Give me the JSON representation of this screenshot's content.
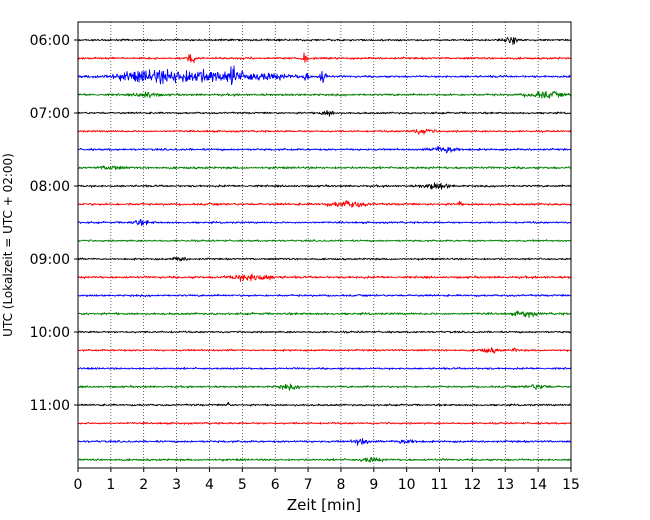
{
  "chart_data": {
    "type": "line",
    "title": "",
    "xlabel": "Zeit  [min]",
    "ylabel": "UTC (Lokalzeit = UTC + 02:00)",
    "xlim": [
      0,
      15
    ],
    "x_ticks": [
      0,
      1,
      2,
      3,
      4,
      5,
      6,
      7,
      8,
      9,
      10,
      11,
      12,
      13,
      14,
      15
    ],
    "x_tick_labels": [
      "0",
      "1",
      "2",
      "3",
      "4",
      "5",
      "6",
      "7",
      "8",
      "9",
      "10",
      "11",
      "12",
      "13",
      "14",
      "15"
    ],
    "y_ticks": [
      "06:00",
      "07:00",
      "08:00",
      "09:00",
      "10:00",
      "11:00"
    ],
    "grid": "vertical-dotted",
    "trace_interval_minutes": 15,
    "start_time": "06:00",
    "colors": [
      "#000000",
      "#ff0000",
      "#0000ff",
      "#008000"
    ],
    "traces": [
      {
        "time": "06:00",
        "color": "#000000",
        "noise": 0.25,
        "events": [
          {
            "x": 13.2,
            "amp": 0.8,
            "dur": 0.3
          }
        ]
      },
      {
        "time": "06:15",
        "color": "#ff0000",
        "noise": 0.28,
        "events": [
          {
            "x": 3.45,
            "amp": 1.8,
            "dur": 0.1
          },
          {
            "x": 6.9,
            "amp": 1.3,
            "dur": 0.1
          }
        ]
      },
      {
        "time": "06:30",
        "color": "#0000ff",
        "noise": 0.28,
        "events": [
          {
            "x": 2.3,
            "amp": 1.6,
            "dur": 1.2
          },
          {
            "x": 3.9,
            "amp": 1.4,
            "dur": 1.0
          },
          {
            "x": 4.75,
            "amp": 3.0,
            "dur": 0.08
          },
          {
            "x": 5.5,
            "amp": 0.9,
            "dur": 1.0
          },
          {
            "x": 6.9,
            "amp": 1.3,
            "dur": 0.1
          },
          {
            "x": 7.45,
            "amp": 2.0,
            "dur": 0.1
          }
        ]
      },
      {
        "time": "06:45",
        "color": "#008000",
        "noise": 0.3,
        "events": [
          {
            "x": 2.1,
            "amp": 0.8,
            "dur": 0.3
          },
          {
            "x": 14.2,
            "amp": 0.9,
            "dur": 0.5
          }
        ]
      },
      {
        "time": "07:00",
        "color": "#000000",
        "noise": 0.25,
        "events": [
          {
            "x": 7.6,
            "amp": 0.8,
            "dur": 0.2
          }
        ]
      },
      {
        "time": "07:15",
        "color": "#ff0000",
        "noise": 0.25,
        "events": [
          {
            "x": 10.5,
            "amp": 0.7,
            "dur": 0.3
          }
        ]
      },
      {
        "time": "07:30",
        "color": "#0000ff",
        "noise": 0.27,
        "events": [
          {
            "x": 11.2,
            "amp": 1.0,
            "dur": 0.4
          }
        ]
      },
      {
        "time": "07:45",
        "color": "#008000",
        "noise": 0.3,
        "events": [
          {
            "x": 1.0,
            "amp": 0.6,
            "dur": 0.3
          }
        ]
      },
      {
        "time": "08:00",
        "color": "#000000",
        "noise": 0.27,
        "events": [
          {
            "x": 10.9,
            "amp": 0.8,
            "dur": 0.4
          }
        ]
      },
      {
        "time": "08:15",
        "color": "#ff0000",
        "noise": 0.3,
        "events": [
          {
            "x": 8.2,
            "amp": 0.8,
            "dur": 0.5
          },
          {
            "x": 11.6,
            "amp": 0.9,
            "dur": 0.05
          }
        ]
      },
      {
        "time": "08:30",
        "color": "#0000ff",
        "noise": 0.25,
        "events": [
          {
            "x": 1.9,
            "amp": 0.6,
            "dur": 0.3
          }
        ]
      },
      {
        "time": "08:45",
        "color": "#008000",
        "noise": 0.25,
        "events": []
      },
      {
        "time": "09:00",
        "color": "#000000",
        "noise": 0.25,
        "events": [
          {
            "x": 3.1,
            "amp": 0.6,
            "dur": 0.2
          }
        ]
      },
      {
        "time": "09:15",
        "color": "#ff0000",
        "noise": 0.3,
        "events": [
          {
            "x": 5.3,
            "amp": 0.9,
            "dur": 0.6
          }
        ]
      },
      {
        "time": "09:30",
        "color": "#0000ff",
        "noise": 0.27,
        "events": []
      },
      {
        "time": "09:45",
        "color": "#008000",
        "noise": 0.3,
        "events": [
          {
            "x": 13.6,
            "amp": 0.8,
            "dur": 0.3
          }
        ]
      },
      {
        "time": "10:00",
        "color": "#000000",
        "noise": 0.25,
        "events": []
      },
      {
        "time": "10:15",
        "color": "#ff0000",
        "noise": 0.25,
        "events": [
          {
            "x": 12.5,
            "amp": 0.6,
            "dur": 0.3
          },
          {
            "x": 13.3,
            "amp": 1.1,
            "dur": 0.05
          }
        ]
      },
      {
        "time": "10:30",
        "color": "#0000ff",
        "noise": 0.25,
        "events": []
      },
      {
        "time": "10:45",
        "color": "#008000",
        "noise": 0.27,
        "events": [
          {
            "x": 6.4,
            "amp": 0.6,
            "dur": 0.3
          },
          {
            "x": 14.0,
            "amp": 0.6,
            "dur": 0.3
          }
        ]
      },
      {
        "time": "11:00",
        "color": "#000000",
        "noise": 0.25,
        "events": [
          {
            "x": 4.55,
            "amp": 1.5,
            "dur": 0.05
          }
        ]
      },
      {
        "time": "11:15",
        "color": "#ff0000",
        "noise": 0.25,
        "events": []
      },
      {
        "time": "11:30",
        "color": "#0000ff",
        "noise": 0.28,
        "events": [
          {
            "x": 8.6,
            "amp": 0.9,
            "dur": 0.2
          },
          {
            "x": 10.0,
            "amp": 0.7,
            "dur": 0.3
          }
        ]
      },
      {
        "time": "11:45",
        "color": "#008000",
        "noise": 0.28,
        "events": [
          {
            "x": 8.9,
            "amp": 0.6,
            "dur": 0.3
          }
        ]
      }
    ]
  }
}
